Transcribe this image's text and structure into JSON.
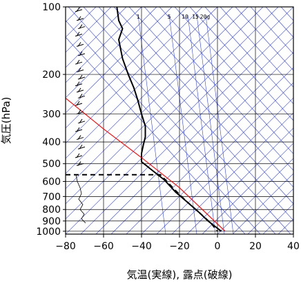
{
  "chart_data": {
    "type": "line",
    "title": "",
    "xlabel": "気温(実線), 露点(破線)",
    "ylabel": "気圧(hPa)",
    "xlim": [
      -80,
      40
    ],
    "ylim": [
      1030,
      100
    ],
    "y_scale": "log",
    "grid": true,
    "x_ticks": [
      -80,
      -60,
      -40,
      -20,
      0,
      20,
      40
    ],
    "x_tick_labels": [
      "−80",
      "−60",
      "−40",
      "−20",
      "0",
      "20",
      "40"
    ],
    "y_ticks": [
      100,
      200,
      300,
      400,
      500,
      600,
      700,
      800,
      900,
      1000
    ],
    "y_tick_labels": [
      "100",
      "200",
      "300",
      "400",
      "500",
      "600",
      "700",
      "800",
      "900",
      "1000"
    ],
    "mixing_ratio_labels": [
      "1",
      "5",
      "10",
      "15",
      "20g"
    ],
    "series": [
      {
        "style": "solid",
        "color": "#000000",
        "x": [
          -53,
          -52,
          -50,
          -52,
          -50,
          -47,
          -44,
          -42,
          -40,
          -38,
          -38,
          -39,
          -40,
          -40,
          -35,
          -28,
          -22,
          -16,
          -10,
          -5,
          2
        ],
        "y": [
          100,
          115,
          125,
          140,
          170,
          200,
          230,
          260,
          300,
          340,
          380,
          410,
          450,
          490,
          530,
          590,
          670,
          740,
          820,
          900,
          1000
        ]
      },
      {
        "style": "dashed",
        "color": "#000000",
        "x": [
          -80,
          -60,
          -40,
          -30,
          -22,
          -16,
          -10,
          -6,
          -3,
          0
        ],
        "y": [
          560,
          560,
          560,
          560,
          660,
          740,
          820,
          880,
          930,
          1000
        ]
      },
      {
        "style": "solid",
        "color": "#ff0000",
        "x": [
          -80,
          -60,
          -40,
          -20,
          4
        ],
        "y": [
          255,
          350,
          470,
          640,
          1000
        ]
      }
    ]
  }
}
